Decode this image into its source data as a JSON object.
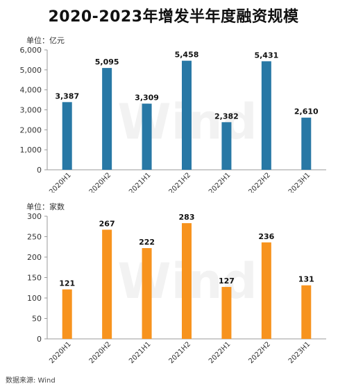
{
  "title": "2020-2023年增发半年度融资规模",
  "source": "数据来源: Wind",
  "watermark": "Wind",
  "chart_data": [
    {
      "type": "bar",
      "unit_label": "单位：亿元",
      "categories": [
        "2020H1",
        "2020H2",
        "2021H1",
        "2021H2",
        "2022H1",
        "2022H2",
        "2023H1"
      ],
      "values": [
        3387,
        5095,
        3309,
        5458,
        2382,
        5431,
        2610
      ],
      "value_labels": [
        "3,387",
        "5,095",
        "3,309",
        "5,458",
        "2,382",
        "5,431",
        "2,610"
      ],
      "ylim": [
        0,
        6000
      ],
      "yticks": [
        0,
        1000,
        2000,
        3000,
        4000,
        5000,
        6000
      ],
      "ytick_labels": [
        "0",
        "1,000",
        "2,000",
        "3,000",
        "4,000",
        "5,000",
        "6,000"
      ],
      "color": "#2878a5",
      "grid": false
    },
    {
      "type": "bar",
      "unit_label": "单位：家数",
      "categories": [
        "2020H1",
        "2020H2",
        "2021H1",
        "2021H2",
        "2022H1",
        "2022H2",
        "2023H1"
      ],
      "values": [
        121,
        267,
        222,
        283,
        127,
        236,
        131
      ],
      "value_labels": [
        "121",
        "267",
        "222",
        "283",
        "127",
        "236",
        "131"
      ],
      "ylim": [
        0,
        300
      ],
      "yticks": [
        0,
        50,
        100,
        150,
        200,
        250,
        300
      ],
      "ytick_labels": [
        "0",
        "50",
        "100",
        "150",
        "200",
        "250",
        "300"
      ],
      "color": "#f7931e",
      "grid": false
    }
  ]
}
